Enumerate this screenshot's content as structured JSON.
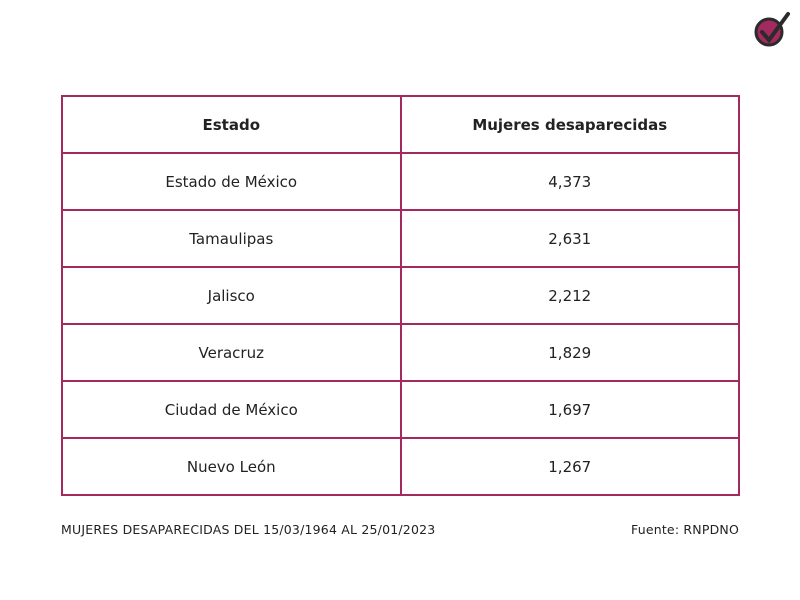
{
  "table": {
    "header": [
      "Estado",
      "Mujeres desaparecidas"
    ],
    "rows": [
      [
        "Estado de México",
        "4,373"
      ],
      [
        "Tamaulipas",
        "2,631"
      ],
      [
        "Jalisco",
        "2,212"
      ],
      [
        "Veracruz",
        "1,829"
      ],
      [
        "Ciudad de México",
        "1,697"
      ],
      [
        "Nuevo León",
        "1,267"
      ]
    ]
  },
  "footer": {
    "note": "MUJERES DESAPARECIDAS DEL 15/03/1964 AL 25/01/2023",
    "source": "Fuente: RNPDNO"
  }
}
